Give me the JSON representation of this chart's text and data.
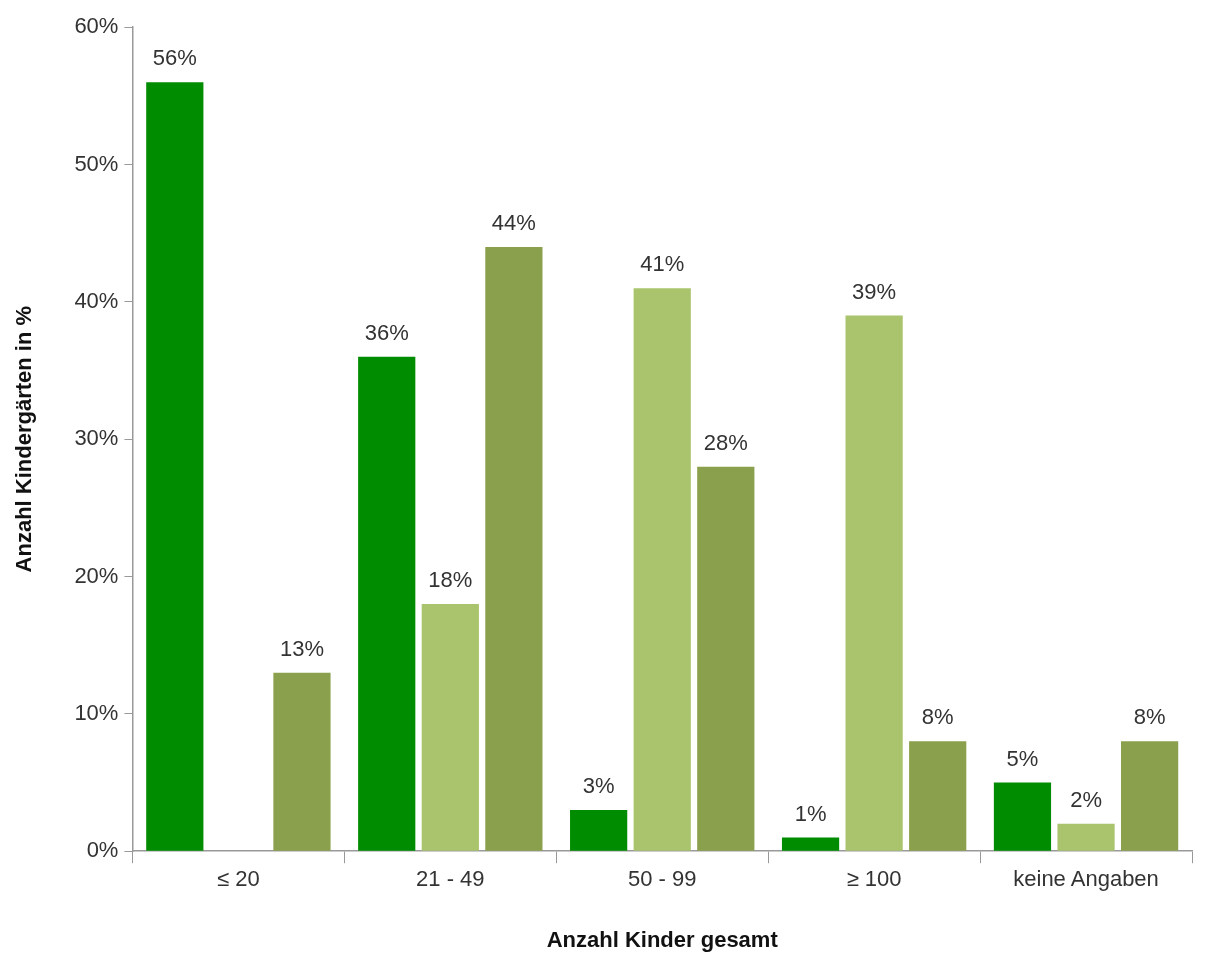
{
  "chart_data": {
    "type": "bar",
    "xlabel": "Anzahl Kinder gesamt",
    "ylabel": "Anzahl Kindergärten in %",
    "categories": [
      "≤ 20",
      "21 - 49",
      "50 - 99",
      "≥ 100",
      "keine Angaben"
    ],
    "series": [
      {
        "color": "#008c00",
        "values": [
          56,
          36,
          3,
          1,
          5
        ],
        "value_labels": [
          "56%",
          "36%",
          "3%",
          "1%",
          "5%"
        ]
      },
      {
        "color": "#a9c46c",
        "values": [
          null,
          18,
          41,
          39,
          2
        ],
        "value_labels": [
          null,
          "18%",
          "41%",
          "39%",
          "2%"
        ]
      },
      {
        "color": "#8aa04c",
        "values": [
          13,
          44,
          28,
          8,
          8
        ],
        "value_labels": [
          "13%",
          "44%",
          "28%",
          "8%",
          "8%"
        ]
      }
    ],
    "ylim": [
      0,
      60
    ],
    "yticks": [
      {
        "value": 0,
        "label": "0%"
      },
      {
        "value": 10,
        "label": "10%"
      },
      {
        "value": 20,
        "label": "20%"
      },
      {
        "value": 30,
        "label": "30%"
      },
      {
        "value": 40,
        "label": "40%"
      },
      {
        "value": 50,
        "label": "50%"
      },
      {
        "value": 60,
        "label": "60%"
      }
    ],
    "grid": false,
    "legend": false
  }
}
